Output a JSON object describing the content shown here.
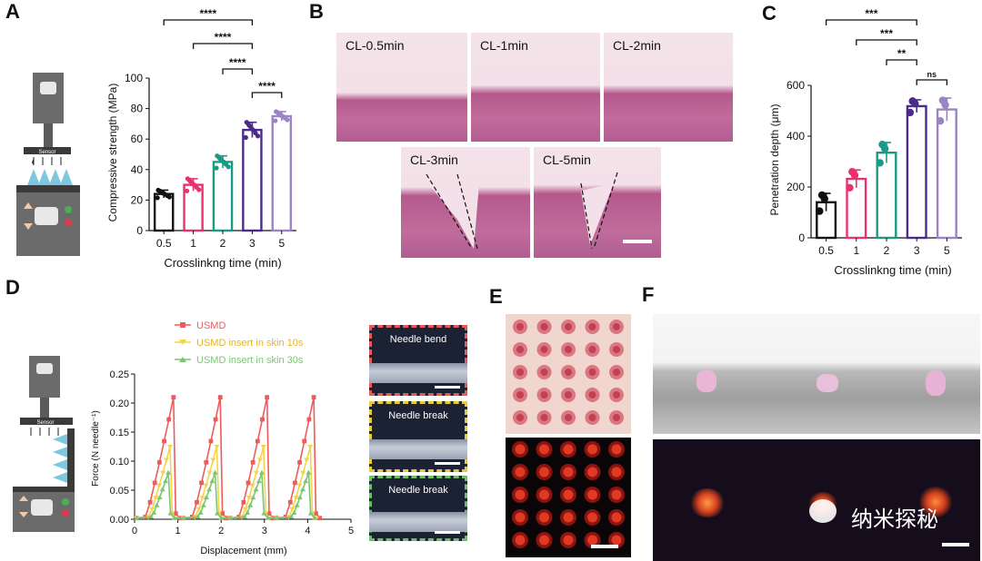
{
  "panels": {
    "a": "A",
    "b": "B",
    "c": "C",
    "d": "D",
    "e": "E",
    "f": "F"
  },
  "device": {
    "sensor_label": "Sensor"
  },
  "chart_data": [
    {
      "id": "A",
      "type": "bar",
      "categories": [
        "0.5",
        "1",
        "2",
        "3",
        "5"
      ],
      "values": [
        24,
        30,
        45,
        66,
        75
      ],
      "errors": [
        2.5,
        4,
        4,
        5,
        3
      ],
      "xlabel": "Crosslinkng time (min)",
      "ylabel": "Compressive strength (MPa)",
      "ylim": [
        0,
        100
      ],
      "yticks": [
        "0",
        "20",
        "40",
        "60",
        "80",
        "100"
      ],
      "colors": [
        "#111111",
        "#e8326e",
        "#1a9a86",
        "#4b2a8a",
        "#9b83c4"
      ],
      "significance": [
        "****",
        "****",
        "****",
        "****"
      ]
    },
    {
      "id": "C",
      "type": "bar",
      "categories": [
        "0.5",
        "1",
        "2",
        "3",
        "5"
      ],
      "values": [
        140,
        232,
        335,
        518,
        505
      ],
      "errors": [
        35,
        35,
        40,
        25,
        45
      ],
      "xlabel": "Crosslinkng time (min)",
      "ylabel": "Penetration depth (μm)",
      "ylim": [
        0,
        600
      ],
      "yticks": [
        "0",
        "200",
        "400",
        "600"
      ],
      "colors": [
        "#111111",
        "#e8326e",
        "#1a9a86",
        "#4b2a8a",
        "#9b83c4"
      ],
      "significance": [
        "***",
        "***",
        "**",
        "ns"
      ]
    },
    {
      "id": "D",
      "type": "line",
      "xlabel": "Displacement (mm)",
      "ylabel": "Force (N needle⁻¹)",
      "xlim": [
        0,
        5
      ],
      "ylim": [
        0,
        0.25
      ],
      "xticks": [
        "0",
        "1",
        "2",
        "3",
        "4",
        "5"
      ],
      "yticks": [
        "0.00",
        "0.05",
        "0.10",
        "0.15",
        "0.20",
        "0.25"
      ],
      "cycles": [
        0,
        1.08,
        2.16,
        3.24
      ],
      "series": [
        {
          "name": "USMD",
          "color": "#ef5b5b",
          "peak": 0.21,
          "rise_start": 0.25,
          "rise_end": 0.9
        },
        {
          "name": "USMD insert in skin 10s",
          "color": "#f5d547",
          "peak": 0.125,
          "rise_start": 0.32,
          "rise_end": 0.82
        },
        {
          "name": "USMD insert in skin 30s",
          "color": "#7cc576",
          "peak": 0.08,
          "rise_start": 0.38,
          "rise_end": 0.78
        }
      ]
    }
  ],
  "histology_b": {
    "top": [
      "CL-0.5min",
      "CL-1min",
      "CL-2min"
    ],
    "bottom": [
      "CL-3min",
      "CL-5min"
    ]
  },
  "needle_panels": [
    {
      "label": "Needle bend",
      "color": "#e85a5a"
    },
    {
      "label": "Needle break",
      "color": "#e8c93a"
    },
    {
      "label": "Needle break",
      "color": "#6fbf6a"
    }
  ],
  "watermark": "纳米探秘"
}
